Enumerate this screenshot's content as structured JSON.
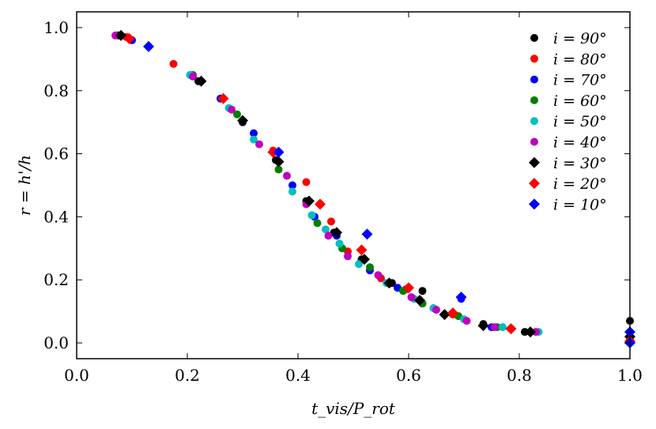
{
  "chart_data": {
    "type": "scatter",
    "xlabel": "t_vis/P_rot",
    "ylabel": "r = h'/h",
    "xlim": [
      0.0,
      1.0
    ],
    "ylim": [
      -0.05,
      1.05
    ],
    "xticks": [
      "0.0",
      "0.2",
      "0.4",
      "0.6",
      "0.8",
      "1.0"
    ],
    "yticks": [
      "0.0",
      "0.2",
      "0.4",
      "0.6",
      "0.8",
      "1.0"
    ],
    "xtick_values": [
      0.0,
      0.2,
      0.4,
      0.6,
      0.8,
      1.0
    ],
    "ytick_values": [
      0.0,
      0.2,
      0.4,
      0.6,
      0.8,
      1.0
    ],
    "legend_position": "top-right",
    "series": [
      {
        "name": "i = 90°",
        "color": "#000000",
        "marker": "circle",
        "points": [
          [
            0.075,
            0.975
          ],
          [
            0.22,
            0.83
          ],
          [
            0.3,
            0.7
          ],
          [
            0.36,
            0.58
          ],
          [
            0.415,
            0.45
          ],
          [
            0.465,
            0.35
          ],
          [
            0.515,
            0.265
          ],
          [
            0.57,
            0.19
          ],
          [
            0.625,
            0.165
          ],
          [
            0.665,
            0.09
          ],
          [
            0.735,
            0.06
          ],
          [
            0.81,
            0.035
          ],
          [
            1.0,
            0.07
          ]
        ]
      },
      {
        "name": "i = 80°",
        "color": "#ff0000",
        "marker": "circle",
        "points": [
          [
            0.09,
            0.97
          ],
          [
            0.175,
            0.885
          ],
          [
            0.26,
            0.775
          ],
          [
            0.355,
            0.61
          ],
          [
            0.415,
            0.51
          ],
          [
            0.44,
            0.44
          ],
          [
            0.46,
            0.385
          ],
          [
            0.49,
            0.29
          ],
          [
            0.55,
            0.205
          ],
          [
            0.595,
            0.17
          ],
          [
            0.645,
            0.11
          ],
          [
            0.68,
            0.09
          ],
          [
            0.785,
            0.045
          ],
          [
            1.0,
            0.01
          ]
        ]
      },
      {
        "name": "i = 70°",
        "color": "#0000ff",
        "marker": "circle",
        "points": [
          [
            0.1,
            0.96
          ],
          [
            0.26,
            0.775
          ],
          [
            0.32,
            0.665
          ],
          [
            0.39,
            0.5
          ],
          [
            0.43,
            0.4
          ],
          [
            0.47,
            0.34
          ],
          [
            0.53,
            0.23
          ],
          [
            0.58,
            0.175
          ],
          [
            0.695,
            0.14
          ],
          [
            0.75,
            0.05
          ],
          [
            1.0,
            0.02
          ]
        ]
      },
      {
        "name": "i = 60°",
        "color": "#008000",
        "marker": "circle",
        "points": [
          [
            0.21,
            0.85
          ],
          [
            0.29,
            0.725
          ],
          [
            0.365,
            0.55
          ],
          [
            0.435,
            0.38
          ],
          [
            0.48,
            0.3
          ],
          [
            0.53,
            0.24
          ],
          [
            0.59,
            0.165
          ],
          [
            0.625,
            0.125
          ],
          [
            0.69,
            0.085
          ],
          [
            0.76,
            0.05
          ]
        ]
      },
      {
        "name": "i = 50°",
        "color": "#00bfbf",
        "marker": "circle",
        "points": [
          [
            0.205,
            0.85
          ],
          [
            0.275,
            0.745
          ],
          [
            0.32,
            0.645
          ],
          [
            0.39,
            0.48
          ],
          [
            0.425,
            0.405
          ],
          [
            0.45,
            0.36
          ],
          [
            0.475,
            0.315
          ],
          [
            0.51,
            0.25
          ],
          [
            0.56,
            0.19
          ],
          [
            0.61,
            0.14
          ],
          [
            0.645,
            0.11
          ],
          [
            0.7,
            0.075
          ],
          [
            0.77,
            0.05
          ],
          [
            0.835,
            0.035
          ]
        ]
      },
      {
        "name": "i = 40°",
        "color": "#bf00bf",
        "marker": "circle",
        "points": [
          [
            0.07,
            0.975
          ],
          [
            0.21,
            0.845
          ],
          [
            0.28,
            0.74
          ],
          [
            0.33,
            0.63
          ],
          [
            0.38,
            0.53
          ],
          [
            0.415,
            0.44
          ],
          [
            0.455,
            0.34
          ],
          [
            0.49,
            0.275
          ],
          [
            0.545,
            0.215
          ],
          [
            0.605,
            0.145
          ],
          [
            0.65,
            0.105
          ],
          [
            0.705,
            0.07
          ],
          [
            0.755,
            0.05
          ],
          [
            0.83,
            0.035
          ]
        ]
      },
      {
        "name": "i = 30°",
        "color": "#000000",
        "marker": "diamond",
        "points": [
          [
            0.08,
            0.975
          ],
          [
            0.225,
            0.83
          ],
          [
            0.3,
            0.705
          ],
          [
            0.365,
            0.575
          ],
          [
            0.42,
            0.45
          ],
          [
            0.47,
            0.35
          ],
          [
            0.52,
            0.265
          ],
          [
            0.565,
            0.19
          ],
          [
            0.62,
            0.135
          ],
          [
            0.665,
            0.09
          ],
          [
            0.735,
            0.055
          ],
          [
            0.82,
            0.035
          ],
          [
            1.0,
            0.02
          ]
        ]
      },
      {
        "name": "i = 20°",
        "color": "#ff0000",
        "marker": "diamond",
        "points": [
          [
            0.095,
            0.965
          ],
          [
            0.265,
            0.775
          ],
          [
            0.355,
            0.605
          ],
          [
            0.44,
            0.44
          ],
          [
            0.515,
            0.295
          ],
          [
            0.6,
            0.175
          ],
          [
            0.68,
            0.095
          ],
          [
            0.785,
            0.045
          ],
          [
            1.0,
            0.005
          ]
        ]
      },
      {
        "name": "i = 10°",
        "color": "#0000ff",
        "marker": "diamond",
        "points": [
          [
            0.13,
            0.94
          ],
          [
            0.365,
            0.605
          ],
          [
            0.525,
            0.345
          ],
          [
            0.695,
            0.145
          ],
          [
            1.0,
            0.035
          ],
          [
            1.0,
            0.0
          ]
        ]
      }
    ]
  }
}
